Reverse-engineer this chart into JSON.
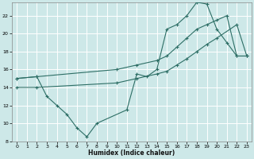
{
  "xlabel": "Humidex (Indice chaleur)",
  "bg_color": "#cde8e8",
  "grid_color": "#ffffff",
  "line_color": "#2d6e65",
  "xlim": [
    -0.5,
    23.5
  ],
  "ylim": [
    8,
    23.5
  ],
  "xticks": [
    0,
    1,
    2,
    3,
    4,
    5,
    6,
    7,
    8,
    9,
    10,
    11,
    12,
    13,
    14,
    15,
    16,
    17,
    18,
    19,
    20,
    21,
    22,
    23
  ],
  "yticks": [
    8,
    10,
    12,
    14,
    16,
    18,
    20,
    22
  ],
  "line1_x": [
    0,
    2,
    3,
    4,
    5,
    6,
    7,
    8,
    11,
    12,
    13,
    14,
    15,
    16,
    17,
    18,
    19,
    20,
    21,
    22,
    23
  ],
  "line1_y": [
    15,
    15.2,
    13,
    12,
    11,
    9.5,
    8.5,
    10.0,
    11.5,
    15.5,
    15.2,
    16.0,
    20.5,
    21.0,
    22.0,
    23.5,
    23.3,
    20.5,
    19.0,
    17.5,
    17.5
  ],
  "line2_x": [
    0,
    2,
    10,
    12,
    14,
    15,
    16,
    17,
    18,
    19,
    20,
    21,
    22,
    23
  ],
  "line2_y": [
    15.0,
    15.2,
    16.0,
    16.5,
    17.0,
    17.5,
    18.5,
    19.5,
    20.5,
    21.0,
    21.5,
    22.0,
    17.5,
    17.5
  ],
  "line3_x": [
    0,
    2,
    10,
    12,
    14,
    15,
    16,
    17,
    18,
    19,
    20,
    22,
    23
  ],
  "line3_y": [
    14.0,
    14.0,
    14.5,
    15.0,
    15.5,
    15.8,
    16.5,
    17.2,
    18.0,
    18.8,
    19.5,
    21.0,
    17.5
  ]
}
